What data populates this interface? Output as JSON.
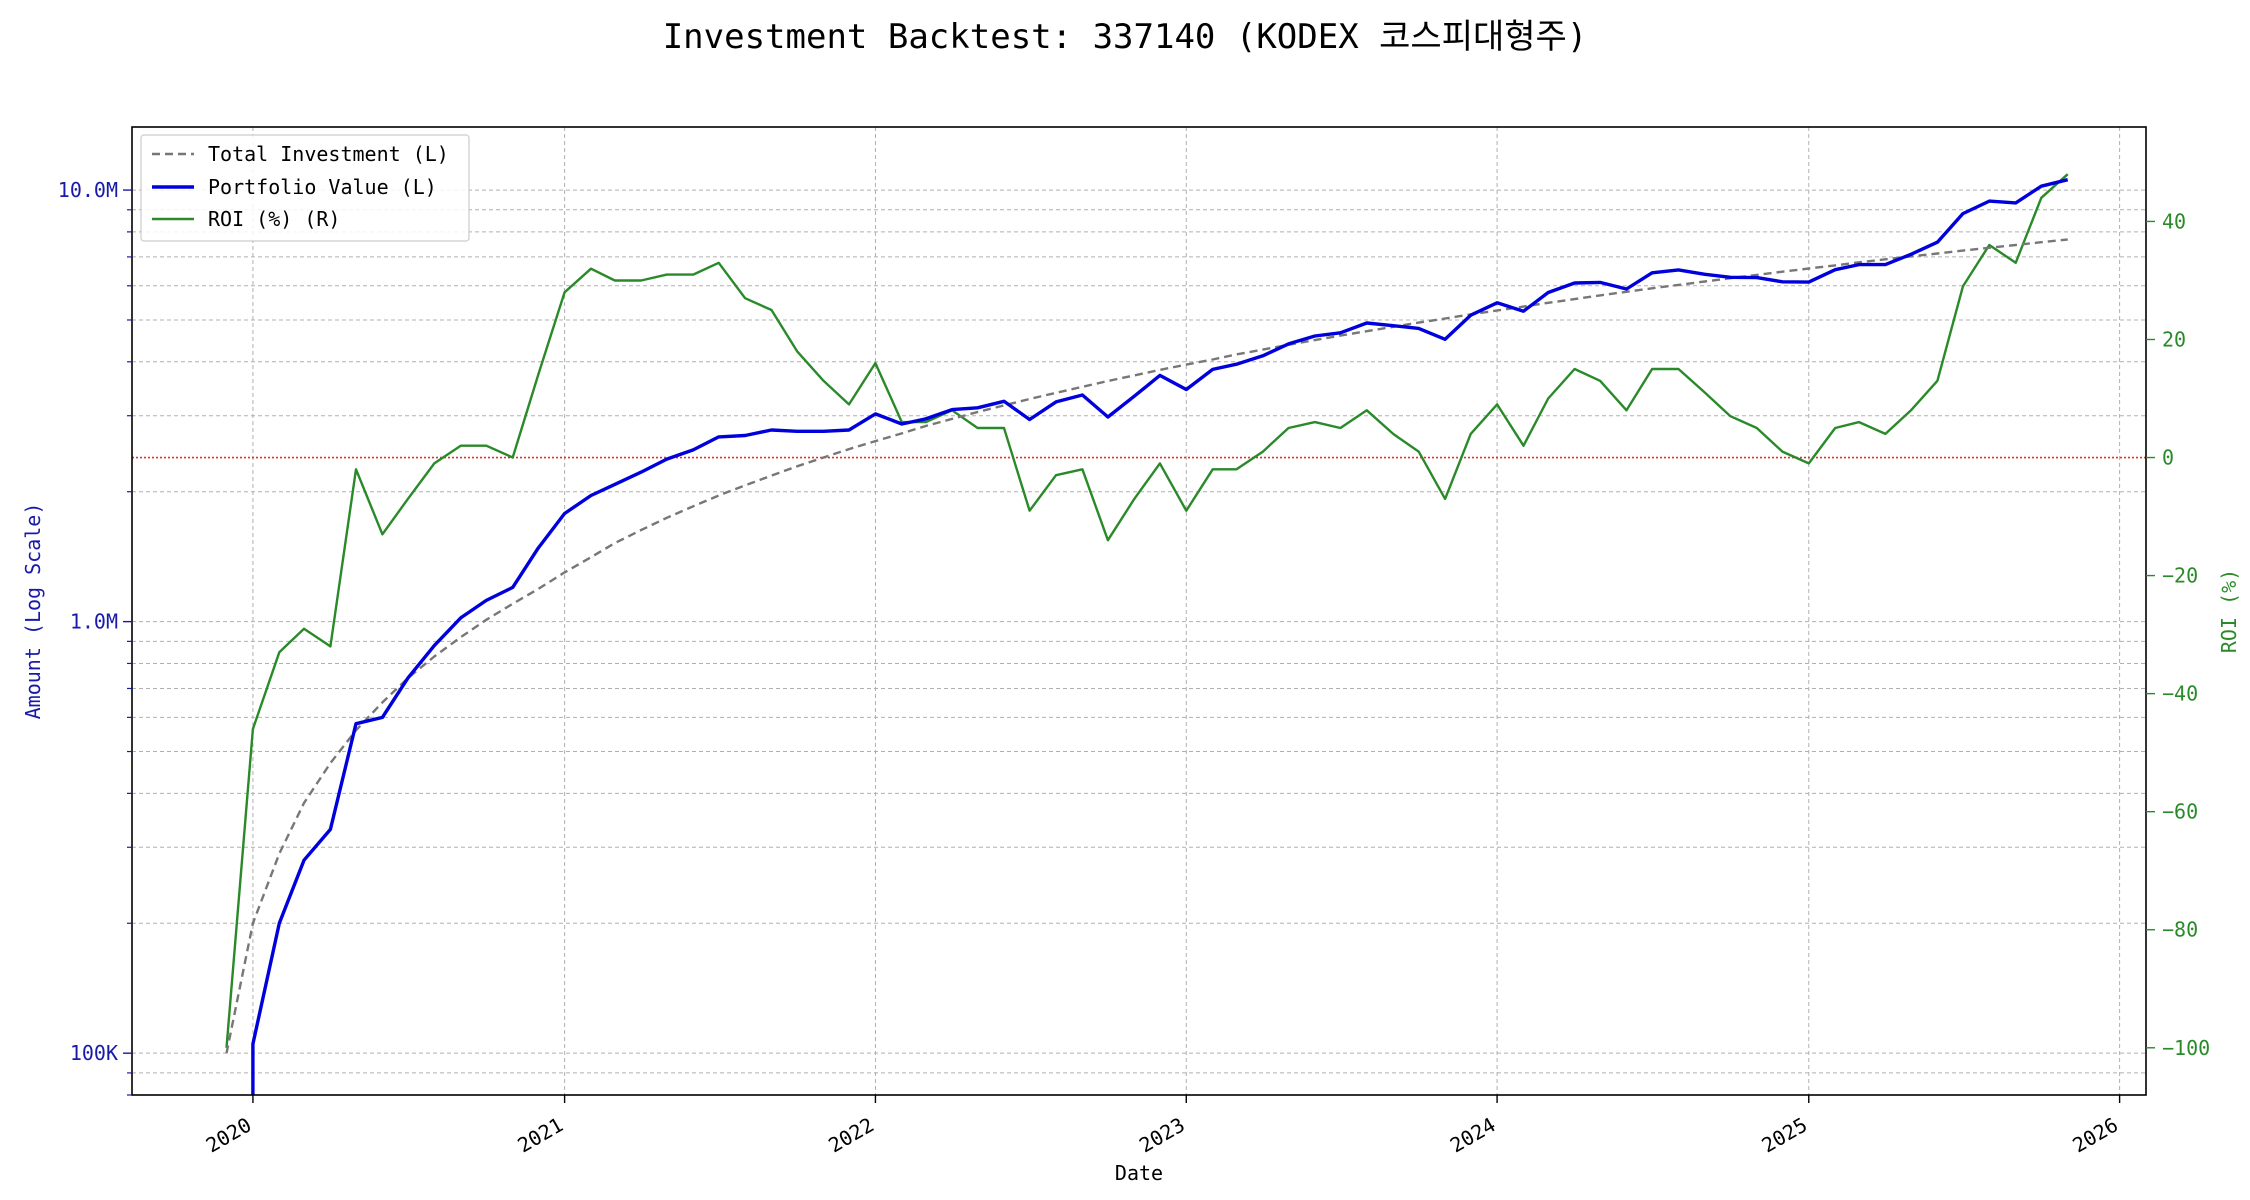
{
  "chart_data": {
    "type": "line",
    "title": "Investment Backtest: 337140 (KODEX 코스피대형주)",
    "xlabel": "Date",
    "ylabel_left": "Amount (Log Scale)",
    "ylabel_right": "ROI (%)",
    "left_scale": "log",
    "left_ylim": [
      80000,
      14000000
    ],
    "right_ylim": [
      -108,
      56
    ],
    "xlim": [
      "2019-08-12",
      "2026-02-01"
    ],
    "x_ticks": [
      {
        "date": "2020-01-01",
        "label": "2020"
      },
      {
        "date": "2021-01-01",
        "label": "2021"
      },
      {
        "date": "2022-01-01",
        "label": "2022"
      },
      {
        "date": "2023-01-01",
        "label": "2023"
      },
      {
        "date": "2024-01-01",
        "label": "2024"
      },
      {
        "date": "2025-01-01",
        "label": "2025"
      },
      {
        "date": "2026-01-01",
        "label": "2026"
      }
    ],
    "left_ticks": [
      {
        "value": 100000,
        "label": "100K"
      },
      {
        "value": 1000000,
        "label": "1.0M"
      },
      {
        "value": 10000000,
        "label": "10.0M"
      }
    ],
    "right_ticks": [
      {
        "value": -100,
        "label": "−100"
      },
      {
        "value": -80,
        "label": "−80"
      },
      {
        "value": -60,
        "label": "−60"
      },
      {
        "value": -40,
        "label": "−40"
      },
      {
        "value": -20,
        "label": "−20"
      },
      {
        "value": 0,
        "label": "0"
      },
      {
        "value": 20,
        "label": "20"
      },
      {
        "value": 40,
        "label": "40"
      }
    ],
    "grid": true,
    "legend_position": "top-left",
    "reference_line": {
      "axis": "right",
      "value": 0,
      "color": "#e03030"
    },
    "colors": {
      "investment": "#777777",
      "portfolio": "#0000dd",
      "roi": "#2a8a2a",
      "left_axis": "#1a1aaa",
      "right_axis": "#2a8a2a"
    },
    "series": [
      {
        "name": "Total Investment (L)",
        "axis": "left",
        "style": "dashed",
        "x": [
          "2019-12-01",
          "2020-01-01",
          "2020-02-01",
          "2020-03-01",
          "2020-04-01",
          "2020-05-01",
          "2020-06-01",
          "2020-07-01",
          "2020-08-01",
          "2020-09-01",
          "2020-10-01",
          "2020-11-01",
          "2020-12-01",
          "2021-01-01",
          "2021-02-01",
          "2021-03-01",
          "2021-04-01",
          "2021-05-01",
          "2021-06-01",
          "2021-07-01",
          "2021-08-01",
          "2021-09-01",
          "2021-10-01",
          "2021-11-01",
          "2021-12-01",
          "2022-01-01",
          "2022-02-01",
          "2022-03-01",
          "2022-04-01",
          "2022-05-01",
          "2022-06-01",
          "2022-07-01",
          "2022-08-01",
          "2022-09-01",
          "2022-10-01",
          "2022-11-01",
          "2022-12-01",
          "2023-01-01",
          "2023-02-01",
          "2023-03-01",
          "2023-04-01",
          "2023-05-01",
          "2023-06-01",
          "2023-07-01",
          "2023-08-01",
          "2023-09-01",
          "2023-10-01",
          "2023-11-01",
          "2023-12-01",
          "2024-01-01",
          "2024-02-01",
          "2024-03-01",
          "2024-04-01",
          "2024-05-01",
          "2024-06-01",
          "2024-07-01",
          "2024-08-01",
          "2024-09-01",
          "2024-10-01",
          "2024-11-01",
          "2024-12-01",
          "2025-01-01",
          "2025-02-01",
          "2025-03-01",
          "2025-04-01",
          "2025-05-01",
          "2025-06-01",
          "2025-07-01",
          "2025-08-01",
          "2025-09-01",
          "2025-10-01",
          "2025-11-01"
        ],
        "values": [
          100000,
          200000,
          290000,
          380000,
          470000,
          560000,
          650000,
          740000,
          830000,
          920000,
          1010000,
          1100000,
          1190000,
          1300000,
          1410000,
          1520000,
          1630000,
          1740000,
          1850000,
          1960000,
          2070000,
          2180000,
          2290000,
          2400000,
          2510000,
          2620000,
          2730000,
          2840000,
          2950000,
          3060000,
          3170000,
          3280000,
          3390000,
          3500000,
          3610000,
          3720000,
          3830000,
          3940000,
          4050000,
          4160000,
          4270000,
          4380000,
          4490000,
          4600000,
          4710000,
          4820000,
          4930000,
          5040000,
          5150000,
          5260000,
          5370000,
          5480000,
          5590000,
          5700000,
          5810000,
          5920000,
          6030000,
          6140000,
          6250000,
          6360000,
          6470000,
          6580000,
          6690000,
          6800000,
          6910000,
          7020000,
          7130000,
          7240000,
          7350000,
          7460000,
          7570000,
          7680000
        ]
      },
      {
        "name": "Portfolio Value (L)",
        "axis": "left",
        "style": "solid",
        "x": [
          "2020-01-01",
          "2020-01-01",
          "2020-02-01",
          "2020-03-01",
          "2020-04-01",
          "2020-05-01",
          "2020-06-01",
          "2020-07-01",
          "2020-08-01",
          "2020-09-01",
          "2020-10-01",
          "2020-11-01",
          "2020-12-01",
          "2021-01-01",
          "2021-02-01",
          "2021-03-01",
          "2021-04-01",
          "2021-05-01",
          "2021-06-01",
          "2021-07-01",
          "2021-08-01",
          "2021-09-01",
          "2021-10-01",
          "2021-11-01",
          "2021-12-01",
          "2022-01-01",
          "2022-02-01",
          "2022-03-01",
          "2022-04-01",
          "2022-05-01",
          "2022-06-01",
          "2022-07-01",
          "2022-08-01",
          "2022-09-01",
          "2022-10-01",
          "2022-11-01",
          "2022-12-01",
          "2023-01-01",
          "2023-02-01",
          "2023-03-01",
          "2023-04-01",
          "2023-05-01",
          "2023-06-01",
          "2023-07-01",
          "2023-08-01",
          "2023-09-01",
          "2023-10-01",
          "2023-11-01",
          "2023-12-01",
          "2024-01-01",
          "2024-02-01",
          "2024-03-01",
          "2024-04-01",
          "2024-05-01",
          "2024-06-01",
          "2024-07-01",
          "2024-08-01",
          "2024-09-01",
          "2024-10-01",
          "2024-11-01",
          "2024-12-01",
          "2025-01-01",
          "2025-02-01",
          "2025-03-01",
          "2025-04-01",
          "2025-05-01",
          "2025-06-01",
          "2025-07-01",
          "2025-08-01",
          "2025-09-01",
          "2025-10-01",
          "2025-11-01"
        ],
        "values": [
          80000,
          105000,
          200000,
          280000,
          330000,
          580000,
          600000,
          740000,
          880000,
          1020000,
          1120000,
          1200000,
          1480000,
          1780000,
          1960000,
          2080000,
          2220000,
          2380000,
          2500000,
          2680000,
          2700000,
          2780000,
          2760000,
          2760000,
          2780000,
          3030000,
          2870000,
          2950000,
          3100000,
          3130000,
          3240000,
          2940000,
          3230000,
          3350000,
          2980000,
          3330000,
          3720000,
          3450000,
          3840000,
          3950000,
          4130000,
          4400000,
          4590000,
          4670000,
          4920000,
          4850000,
          4780000,
          4510000,
          5130000,
          5480000,
          5240000,
          5790000,
          6090000,
          6110000,
          5900000,
          6430000,
          6530000,
          6380000,
          6280000,
          6270000,
          6130000,
          6120000,
          6540000,
          6720000,
          6720000,
          7100000,
          7570000,
          8820000,
          9430000,
          9340000,
          10210000,
          10570000
        ]
      },
      {
        "name": "ROI (%) (R)",
        "axis": "right",
        "style": "solid",
        "x": [
          "2019-12-01",
          "2020-01-01",
          "2020-02-01",
          "2020-03-01",
          "2020-04-01",
          "2020-05-01",
          "2020-06-01",
          "2020-07-01",
          "2020-08-01",
          "2020-09-01",
          "2020-10-01",
          "2020-11-01",
          "2020-12-01",
          "2021-01-01",
          "2021-02-01",
          "2021-03-01",
          "2021-04-01",
          "2021-05-01",
          "2021-06-01",
          "2021-07-01",
          "2021-08-01",
          "2021-09-01",
          "2021-10-01",
          "2021-11-01",
          "2021-12-01",
          "2022-01-01",
          "2022-02-01",
          "2022-03-01",
          "2022-04-01",
          "2022-05-01",
          "2022-06-01",
          "2022-07-01",
          "2022-08-01",
          "2022-09-01",
          "2022-10-01",
          "2022-11-01",
          "2022-12-01",
          "2023-01-01",
          "2023-02-01",
          "2023-03-01",
          "2023-04-01",
          "2023-05-01",
          "2023-06-01",
          "2023-07-01",
          "2023-08-01",
          "2023-09-01",
          "2023-10-01",
          "2023-11-01",
          "2023-12-01",
          "2024-01-01",
          "2024-02-01",
          "2024-03-01",
          "2024-04-01",
          "2024-05-01",
          "2024-06-01",
          "2024-07-01",
          "2024-08-01",
          "2024-09-01",
          "2024-10-01",
          "2024-11-01",
          "2024-12-01",
          "2025-01-01",
          "2025-02-01",
          "2025-03-01",
          "2025-04-01",
          "2025-05-01",
          "2025-06-01",
          "2025-07-01",
          "2025-08-01",
          "2025-09-01",
          "2025-10-01",
          "2025-11-01"
        ],
        "values": [
          -100,
          -46,
          -33,
          -29,
          -32,
          -2,
          -13,
          -7,
          -1,
          2,
          2,
          0,
          14,
          28,
          32,
          30,
          30,
          31,
          31,
          33,
          27,
          25,
          18,
          13,
          9,
          16,
          6,
          6,
          8,
          5,
          5,
          -9,
          -3,
          -2,
          -14,
          -7,
          -1,
          -9,
          -2,
          -2,
          1,
          5,
          6,
          5,
          8,
          4,
          1,
          -7,
          4,
          9,
          2,
          10,
          15,
          13,
          8,
          15,
          15,
          11,
          7,
          5,
          1,
          -1,
          5,
          6,
          4,
          8,
          13,
          29,
          36,
          33,
          44,
          48
        ]
      }
    ]
  }
}
